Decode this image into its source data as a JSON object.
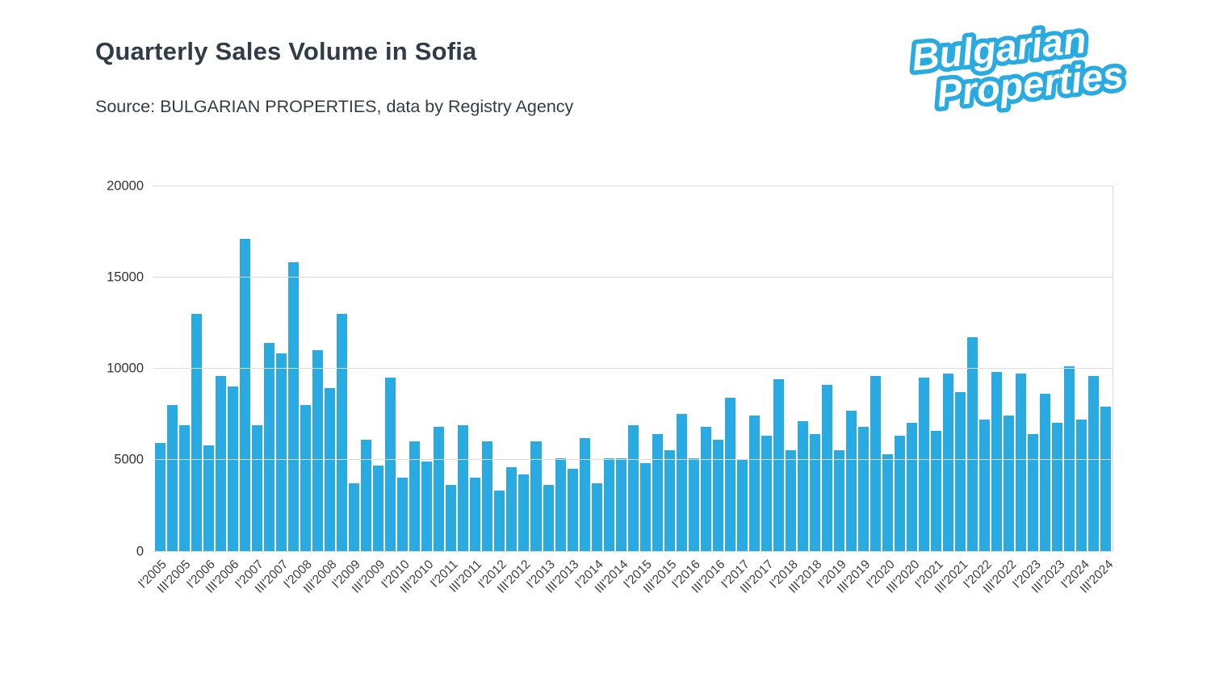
{
  "header": {
    "title": "Quarterly Sales Volume in Sofia",
    "source": "Source: BULGARIAN PROPERTIES, data by Registry Agency"
  },
  "logo": {
    "line1": "Bulgarian",
    "line2": "Properties",
    "color": "#29ABE2"
  },
  "chart_data": {
    "type": "bar",
    "title": "Quarterly Sales Volume in Sofia",
    "xlabel": "",
    "ylabel": "",
    "ylim": [
      0,
      20000
    ],
    "y_ticks": [
      0,
      5000,
      10000,
      15000,
      20000
    ],
    "bar_color": "#29ABE2",
    "grid": true,
    "legend": "none",
    "categories": [
      "I'2005",
      "II'2005",
      "III'2005",
      "IV'2005",
      "I'2006",
      "II'2006",
      "III'2006",
      "IV'2006",
      "I'2007",
      "II'2007",
      "III'2007",
      "IV'2007",
      "I'2008",
      "II'2008",
      "III'2008",
      "IV'2008",
      "I'2009",
      "II'2009",
      "III'2009",
      "IV'2009",
      "I'2010",
      "II'2010",
      "III'2010",
      "IV'2010",
      "I'2011",
      "II'2011",
      "III'2011",
      "IV'2011",
      "I'2012",
      "II'2012",
      "III'2012",
      "IV'2012",
      "I'2013",
      "II'2013",
      "III'2013",
      "IV'2013",
      "I'2014",
      "II'2014",
      "III'2014",
      "IV'2014",
      "I'2015",
      "II'2015",
      "III'2015",
      "IV'2015",
      "I'2016",
      "II'2016",
      "III'2016",
      "IV'2016",
      "I'2017",
      "II'2017",
      "III'2017",
      "IV'2017",
      "I'2018",
      "II'2018",
      "III'2018",
      "IV'2018",
      "I'2019",
      "II'2019",
      "III'2019",
      "IV'2019",
      "I'2020",
      "II'2020",
      "III'2020",
      "IV'2020",
      "I'2021",
      "II'2021",
      "III'2021",
      "IV'2021",
      "I'2022",
      "II'2022",
      "III'2022",
      "IV'2022",
      "I'2023",
      "II'2023",
      "III'2023",
      "IV'2023",
      "I'2024",
      "II'2024",
      "III'2024"
    ],
    "values": [
      5900,
      8000,
      6900,
      13000,
      5800,
      9600,
      9000,
      17100,
      6900,
      11400,
      10800,
      15800,
      8000,
      11000,
      8900,
      13000,
      3700,
      6100,
      4700,
      9500,
      4000,
      6000,
      4900,
      6800,
      3600,
      6900,
      4000,
      6000,
      3300,
      4600,
      4200,
      6000,
      3600,
      5100,
      4500,
      6200,
      3700,
      5100,
      5100,
      6900,
      4800,
      6400,
      5500,
      7500,
      5100,
      6800,
      6100,
      8400,
      5000,
      7400,
      6300,
      9400,
      5500,
      7100,
      6400,
      9100,
      5500,
      7700,
      6800,
      9600,
      5300,
      6300,
      7000,
      9500,
      6600,
      9700,
      8700,
      11700,
      7200,
      9800,
      7400,
      9700,
      6400,
      8600,
      7000,
      10100,
      7200,
      9600,
      7900
    ],
    "x_tick_labels": [
      "I'2005",
      "III'2005",
      "I'2006",
      "III'2006",
      "I'2007",
      "III'2007",
      "I'2008",
      "III'2008",
      "I'2009",
      "III'2009",
      "I'2010",
      "III'2010",
      "I'2011",
      "III'2011",
      "I'2012",
      "III'2012",
      "I'2013",
      "III'2013",
      "I'2014",
      "III'2014",
      "I'2015",
      "III'2015",
      "I'2016",
      "III'2016",
      "I'2017",
      "III'2017",
      "I'2018",
      "III'2018",
      "I'2019",
      "III'2019",
      "I'2020",
      "III'2020",
      "I'2021",
      "III'2021",
      "I'2022",
      "III'2022",
      "I'2023",
      "III'2023",
      "I'2024",
      "III'2024"
    ],
    "x_tick_every": 2
  }
}
